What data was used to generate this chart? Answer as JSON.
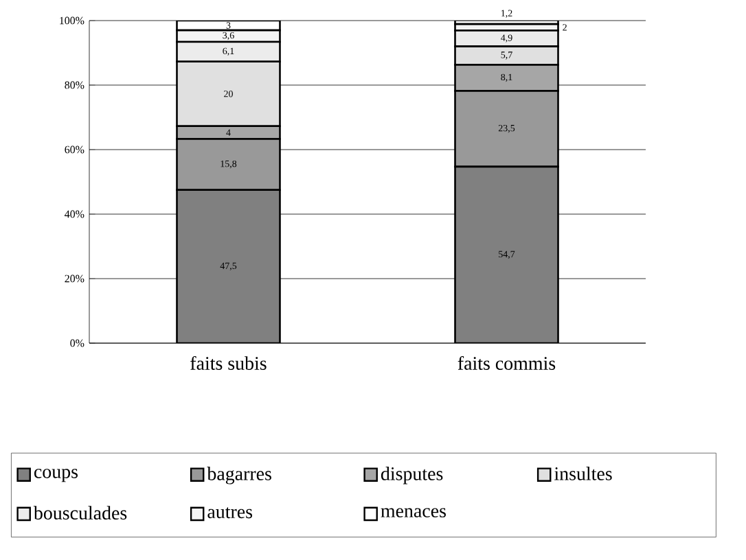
{
  "chart_data": {
    "type": "bar",
    "stacked": true,
    "categories": [
      "faits subis",
      "faits commis"
    ],
    "series": [
      {
        "name": "coups",
        "color": "#808080",
        "values": [
          47.5,
          54.7
        ],
        "value_labels": [
          "47,5",
          "54,7"
        ]
      },
      {
        "name": "bagarres",
        "color": "#999999",
        "values": [
          15.8,
          23.5
        ],
        "value_labels": [
          "15,8",
          "23,5"
        ]
      },
      {
        "name": "disputes",
        "color": "#a6a6a6",
        "values": [
          4,
          8.1
        ],
        "value_labels": [
          "4",
          "8,1"
        ]
      },
      {
        "name": "insultes",
        "color": "#e0e0e0",
        "values": [
          20,
          5.7
        ],
        "value_labels": [
          "20",
          "5,7"
        ]
      },
      {
        "name": "bousculades",
        "color": "#ececec",
        "values": [
          6.1,
          4.9
        ],
        "value_labels": [
          "6,1",
          "4,9"
        ]
      },
      {
        "name": "autres",
        "color": "#f4f4f4",
        "values": [
          3.6,
          2
        ],
        "value_labels": [
          "3,6",
          "2"
        ]
      },
      {
        "name": "menaces",
        "color": "#ffffff",
        "values": [
          3,
          1.2
        ],
        "value_labels": [
          "3",
          "1,2"
        ]
      }
    ],
    "ylim": [
      0,
      100
    ],
    "yticks": [
      {
        "value": 0,
        "label": "0%"
      },
      {
        "value": 20,
        "label": "20%"
      },
      {
        "value": 40,
        "label": "40%"
      },
      {
        "value": 60,
        "label": "60%"
      },
      {
        "value": 80,
        "label": "80%"
      },
      {
        "value": 100,
        "label": "100%"
      }
    ],
    "grid": "y",
    "legend": "bottom"
  }
}
